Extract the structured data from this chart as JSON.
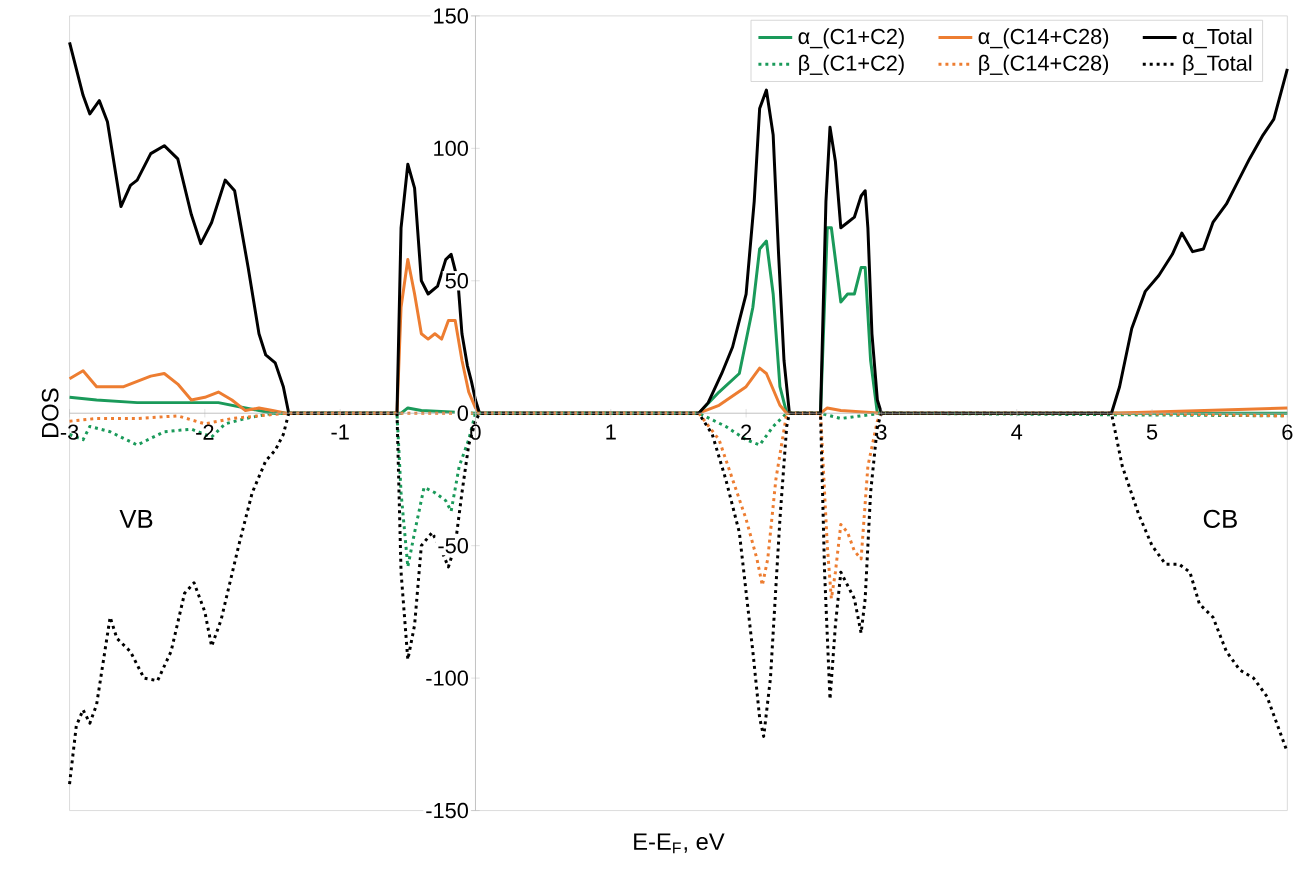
{
  "chart_data": {
    "type": "line",
    "xlabel": "E-E$_{F}$, eV",
    "ylabel": "DOS",
    "xlim": [
      -3,
      6
    ],
    "ylim": [
      -150,
      150
    ],
    "xticks": [
      -3,
      -2,
      -1,
      0,
      1,
      2,
      3,
      4,
      5,
      6
    ],
    "yticks": [
      -150,
      -100,
      -50,
      0,
      50,
      100,
      150
    ],
    "grid": false,
    "legend": "top right",
    "marker": "none",
    "annotations": [
      "VB",
      "CB"
    ],
    "series": [
      {
        "name": "α_(C1+C2)",
        "color": "#1a9a5a",
        "line_style": "solid",
        "x": [
          -3,
          -2.8,
          -2.5,
          -2.2,
          -1.9,
          -1.7,
          -1.5,
          -0.55,
          -0.5,
          -0.4,
          0,
          1.65,
          1.8,
          1.95,
          2.05,
          2.1,
          2.15,
          2.2,
          2.25,
          2.3,
          2.55,
          2.6,
          2.63,
          2.7,
          2.75,
          2.8,
          2.85,
          2.88,
          2.92,
          2.97,
          6
        ],
        "values": [
          6,
          5,
          4,
          4,
          4,
          2,
          0,
          0,
          2,
          1,
          0,
          0,
          8,
          15,
          40,
          62,
          65,
          45,
          10,
          0,
          0,
          70,
          70,
          42,
          45,
          45,
          55,
          55,
          20,
          0,
          0
        ]
      },
      {
        "name": "α_(C14+C28)",
        "color": "#ed7d31",
        "line_style": "solid",
        "x": [
          -3,
          -2.9,
          -2.8,
          -2.6,
          -2.4,
          -2.3,
          -2.2,
          -2.1,
          -2.0,
          -1.9,
          -1.8,
          -1.7,
          -1.6,
          -1.5,
          -1.4,
          -0.58,
          -0.55,
          -0.5,
          -0.45,
          -0.4,
          -0.35,
          -0.3,
          -0.25,
          -0.2,
          -0.15,
          -0.1,
          -0.05,
          0,
          0.03,
          1.65,
          1.8,
          2.0,
          2.1,
          2.15,
          2.25,
          2.3,
          2.55,
          2.6,
          2.7,
          3,
          4.7,
          6
        ],
        "values": [
          13,
          16,
          10,
          10,
          14,
          15,
          11,
          5,
          6,
          8,
          5,
          1,
          2,
          1,
          0,
          0,
          40,
          58,
          45,
          30,
          28,
          30,
          28,
          35,
          35,
          20,
          8,
          2,
          0,
          0,
          3,
          10,
          17,
          15,
          3,
          0,
          0,
          2,
          1,
          0,
          0,
          2
        ]
      },
      {
        "name": "α_Total",
        "color": "#000000",
        "line_style": "solid",
        "x": [
          -3,
          -2.9,
          -2.85,
          -2.78,
          -2.72,
          -2.62,
          -2.55,
          -2.5,
          -2.4,
          -2.3,
          -2.2,
          -2.1,
          -2.03,
          -1.95,
          -1.85,
          -1.78,
          -1.68,
          -1.6,
          -1.55,
          -1.48,
          -1.42,
          -1.38,
          -0.58,
          -0.55,
          -0.5,
          -0.45,
          -0.4,
          -0.35,
          -0.28,
          -0.22,
          -0.18,
          -0.13,
          -0.1,
          -0.06,
          -0.03,
          0,
          0.03,
          1.65,
          1.72,
          1.82,
          1.9,
          2.0,
          2.06,
          2.1,
          2.15,
          2.2,
          2.24,
          2.28,
          2.32,
          2.55,
          2.59,
          2.62,
          2.66,
          2.7,
          2.75,
          2.8,
          2.85,
          2.88,
          2.9,
          2.93,
          2.97,
          3.0,
          4.7,
          4.76,
          4.85,
          4.95,
          5.05,
          5.15,
          5.22,
          5.3,
          5.38,
          5.45,
          5.55,
          5.62,
          5.72,
          5.82,
          5.9,
          6.0
        ],
        "values": [
          140,
          120,
          113,
          118,
          110,
          78,
          86,
          88,
          98,
          101,
          96,
          75,
          64,
          72,
          88,
          84,
          55,
          30,
          22,
          19,
          10,
          0,
          0,
          70,
          94,
          85,
          50,
          45,
          48,
          58,
          60,
          50,
          30,
          18,
          12,
          5,
          0,
          0,
          4,
          15,
          25,
          45,
          80,
          115,
          122,
          105,
          60,
          20,
          0,
          0,
          80,
          108,
          95,
          70,
          72,
          74,
          82,
          84,
          70,
          30,
          5,
          0,
          0,
          10,
          32,
          46,
          52,
          60,
          68,
          61,
          62,
          72,
          79,
          86,
          96,
          105,
          111,
          130
        ]
      },
      {
        "name": "β_(C1+C2)",
        "color": "#1a9a5a",
        "line_style": "dotted",
        "x": [
          -3,
          -2.9,
          -2.85,
          -2.7,
          -2.5,
          -2.3,
          -2.1,
          -1.95,
          -1.85,
          -1.7,
          -1.5,
          -0.58,
          -0.55,
          -0.5,
          -0.45,
          -0.38,
          -0.3,
          -0.22,
          -0.18,
          -0.12,
          -0.05,
          0,
          1.65,
          1.85,
          2.0,
          2.1,
          2.2,
          2.3,
          2.55,
          2.7,
          3.0,
          6
        ],
        "values": [
          -8,
          -10,
          -5,
          -7,
          -12,
          -7,
          -6,
          -9,
          -4,
          -2,
          0,
          0,
          -30,
          -58,
          -45,
          -28,
          -30,
          -33,
          -37,
          -20,
          -10,
          0,
          0,
          -5,
          -10,
          -12,
          -5,
          0,
          0,
          -2,
          0,
          -1
        ]
      },
      {
        "name": "β_(C14+C28)",
        "color": "#ed7d31",
        "line_style": "dotted",
        "x": [
          -3,
          -2.8,
          -2.5,
          -2.2,
          -2.0,
          -1.8,
          -1.6,
          -1.4,
          -0.55,
          0,
          1.65,
          1.8,
          1.9,
          2.0,
          2.08,
          2.12,
          2.16,
          2.22,
          2.3,
          2.55,
          2.6,
          2.63,
          2.66,
          2.7,
          2.75,
          2.8,
          2.85,
          2.9,
          2.97,
          3.0,
          4.7,
          6
        ],
        "values": [
          -3,
          -2,
          -2,
          -1,
          -4,
          -2,
          -1,
          0,
          0,
          0,
          0,
          -10,
          -25,
          -40,
          -55,
          -65,
          -55,
          -25,
          0,
          0,
          -50,
          -70,
          -60,
          -42,
          -45,
          -52,
          -55,
          -20,
          -3,
          0,
          0,
          -1
        ]
      },
      {
        "name": "β_Total",
        "color": "#000000",
        "line_style": "dotted",
        "x": [
          -3,
          -2.95,
          -2.9,
          -2.85,
          -2.8,
          -2.7,
          -2.65,
          -2.55,
          -2.45,
          -2.35,
          -2.25,
          -2.15,
          -2.08,
          -2.0,
          -1.95,
          -1.88,
          -1.75,
          -1.65,
          -1.55,
          -1.48,
          -1.42,
          -1.38,
          -0.58,
          -0.55,
          -0.5,
          -0.45,
          -0.4,
          -0.32,
          -0.25,
          -0.2,
          -0.15,
          -0.1,
          -0.05,
          0,
          0.03,
          1.65,
          1.75,
          1.85,
          1.95,
          2.05,
          2.1,
          2.13,
          2.18,
          2.25,
          2.3,
          2.32,
          2.55,
          2.58,
          2.62,
          2.66,
          2.7,
          2.75,
          2.8,
          2.85,
          2.88,
          2.92,
          2.97,
          3.0,
          4.7,
          4.78,
          4.9,
          5.0,
          5.1,
          5.2,
          5.28,
          5.35,
          5.45,
          5.55,
          5.65,
          5.75,
          5.85,
          6.0
        ],
        "values": [
          -140,
          -118,
          -112,
          -117,
          -110,
          -77,
          -85,
          -90,
          -100,
          -101,
          -90,
          -68,
          -64,
          -75,
          -88,
          -78,
          -50,
          -30,
          -18,
          -14,
          -8,
          0,
          0,
          -60,
          -93,
          -80,
          -50,
          -45,
          -52,
          -58,
          -50,
          -30,
          -12,
          -3,
          0,
          0,
          -8,
          -25,
          -45,
          -90,
          -115,
          -122,
          -100,
          -40,
          -5,
          0,
          0,
          -60,
          -108,
          -80,
          -60,
          -65,
          -70,
          -83,
          -70,
          -30,
          -5,
          0,
          0,
          -20,
          -38,
          -50,
          -57,
          -57,
          -60,
          -72,
          -77,
          -90,
          -97,
          -100,
          -107,
          -128
        ]
      }
    ]
  }
}
